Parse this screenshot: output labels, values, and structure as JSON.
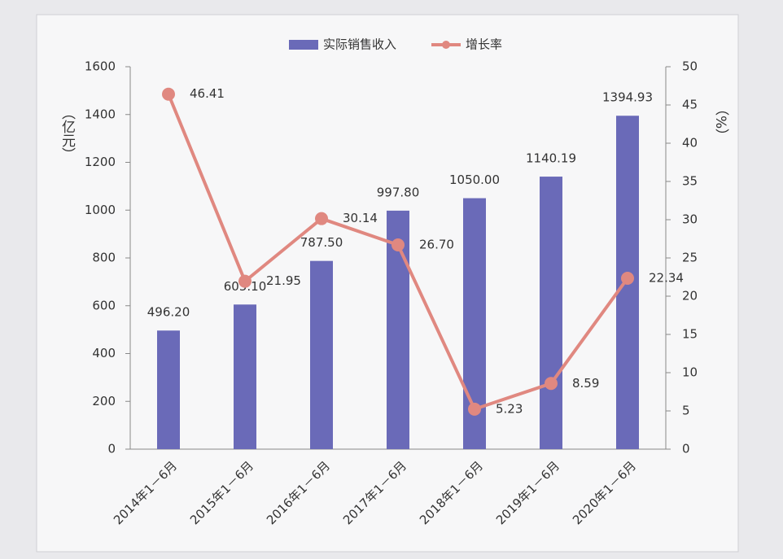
{
  "chart_data": {
    "type": "bar",
    "categories": [
      "2014年1－6月",
      "2015年1－6月",
      "2016年1－6月",
      "2017年1－6月",
      "2018年1－6月",
      "2019年1－6月",
      "2020年1－6月"
    ],
    "series": [
      {
        "name": "实际销售收入",
        "color": "#6a6ab8",
        "values": [
          496.2,
          605.1,
          787.5,
          997.8,
          1050,
          1140.19,
          1394.93
        ],
        "value_labels": [
          "496.20",
          "605.10",
          "787.50",
          "997.80",
          "1050.00",
          "1140.19",
          "1394.93"
        ]
      },
      {
        "name": "增长率",
        "type": "line",
        "axis": "y2",
        "color": "#e08880",
        "values": [
          46.41,
          21.95,
          30.14,
          26.7,
          5.23,
          8.59,
          22.34
        ],
        "value_labels": [
          "46.41",
          "21.95",
          "30.14",
          "26.70",
          "5.23",
          "8.59",
          "22.34"
        ]
      }
    ],
    "ylabel": "（亿元）",
    "y2label": "（%）",
    "ylim": [
      0,
      1600
    ],
    "yticks": [
      0,
      200,
      400,
      600,
      800,
      1000,
      1200,
      1400,
      1600
    ],
    "y2lim": [
      0,
      50
    ],
    "y2ticks": [
      0,
      5,
      10,
      15,
      20,
      25,
      30,
      35,
      40,
      45,
      50
    ]
  }
}
